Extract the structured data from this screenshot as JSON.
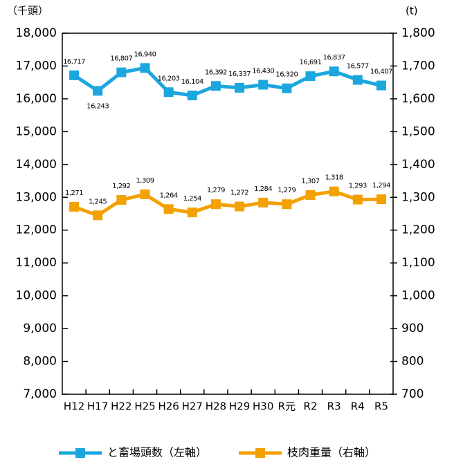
{
  "chart_data": {
    "type": "line",
    "y_label": "（千頭）",
    "y2_label": "(t)",
    "categories": [
      "H12",
      "H17",
      "H22",
      "H25",
      "H26",
      "H27",
      "H28",
      "H29",
      "H30",
      "R元",
      "R2",
      "R3",
      "R4",
      "R5"
    ],
    "series": [
      {
        "name": "と畜場頭数（左軸）",
        "color": "#1ba6de",
        "values": [
          16717,
          16243,
          16807,
          16940,
          16203,
          16104,
          16392,
          16337,
          16430,
          16320,
          16691,
          16837,
          16577,
          16407
        ],
        "value_labels": [
          "16,717",
          "16,243",
          "16,807",
          "16,940",
          "16,203",
          "16,104",
          "16,392",
          "16,337",
          "16,430",
          "16,320",
          "16,691",
          "16,837",
          "16,577",
          "16,407"
        ]
      },
      {
        "name": "枝肉重量（右軸）",
        "color": "#f2a100",
        "axis": "y2",
        "values": [
          1271,
          1245,
          1292,
          1309,
          1264,
          1254,
          1279,
          1272,
          1284,
          1279,
          1307,
          1318,
          1293,
          1294
        ],
        "value_labels": [
          "1,271",
          "1,245",
          "1,292",
          "1,309",
          "1,264",
          "1,254",
          "1,279",
          "1,272",
          "1,284",
          "1,279",
          "1,307",
          "1,318",
          "1,293",
          "1,294"
        ]
      }
    ],
    "ylim": [
      7000,
      18000
    ],
    "yticks": [
      {
        "value": 7000,
        "label": "7,000"
      },
      {
        "value": 8000,
        "label": "8,000"
      },
      {
        "value": 9000,
        "label": "9,000"
      },
      {
        "value": 10000,
        "label": "10,000"
      },
      {
        "value": 11000,
        "label": "11,000"
      },
      {
        "value": 12000,
        "label": "12,000"
      },
      {
        "value": 13000,
        "label": "13,000"
      },
      {
        "value": 14000,
        "label": "14,000"
      },
      {
        "value": 15000,
        "label": "15,000"
      },
      {
        "value": 16000,
        "label": "16,000"
      },
      {
        "value": 17000,
        "label": "17,000"
      },
      {
        "value": 18000,
        "label": "18,000"
      }
    ],
    "y2lim": [
      700,
      1800
    ],
    "y2ticks": [
      700,
      800,
      900,
      {
        "value": 1000,
        "label": "1,000"
      },
      {
        "value": 1100,
        "label": "1,100"
      },
      {
        "value": 1200,
        "label": "1,200"
      },
      {
        "value": 1300,
        "label": "1,300"
      },
      {
        "value": 1400,
        "label": "1,400"
      },
      {
        "value": 1500,
        "label": "1,500"
      },
      {
        "value": 1600,
        "label": "1,600"
      },
      {
        "value": 1700,
        "label": "1,700"
      },
      {
        "value": 1800,
        "label": "1,800"
      }
    ],
    "legend": "bottom"
  }
}
